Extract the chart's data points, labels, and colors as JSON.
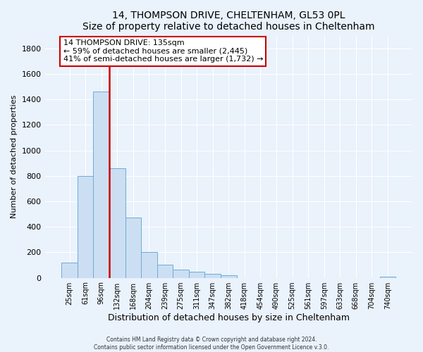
{
  "title": "14, THOMPSON DRIVE, CHELTENHAM, GL53 0PL",
  "subtitle": "Size of property relative to detached houses in Cheltenham",
  "xlabel": "Distribution of detached houses by size in Cheltenham",
  "ylabel": "Number of detached properties",
  "bar_labels": [
    "25sqm",
    "61sqm",
    "96sqm",
    "132sqm",
    "168sqm",
    "204sqm",
    "239sqm",
    "275sqm",
    "311sqm",
    "347sqm",
    "382sqm",
    "418sqm",
    "454sqm",
    "490sqm",
    "525sqm",
    "561sqm",
    "597sqm",
    "633sqm",
    "668sqm",
    "704sqm",
    "740sqm"
  ],
  "bar_values": [
    120,
    800,
    1460,
    860,
    475,
    200,
    100,
    65,
    50,
    30,
    20,
    0,
    0,
    0,
    0,
    0,
    0,
    0,
    0,
    0,
    10
  ],
  "bar_color": "#ccdff2",
  "bar_edgecolor": "#6aadd5",
  "vline_color": "#cc0000",
  "annotation_text": "14 THOMPSON DRIVE: 135sqm\n← 59% of detached houses are smaller (2,445)\n41% of semi-detached houses are larger (1,732) →",
  "annotation_box_edgecolor": "#cc0000",
  "annotation_box_facecolor": "#ffffff",
  "ylim": [
    0,
    1900
  ],
  "yticks": [
    0,
    200,
    400,
    600,
    800,
    1000,
    1200,
    1400,
    1600,
    1800
  ],
  "footer_line1": "Contains HM Land Registry data © Crown copyright and database right 2024.",
  "footer_line2": "Contains public sector information licensed under the Open Government Licence v.3.0.",
  "background_color": "#eaf2fb",
  "plot_background_color": "#eaf2fb",
  "grid_color": "#ffffff"
}
